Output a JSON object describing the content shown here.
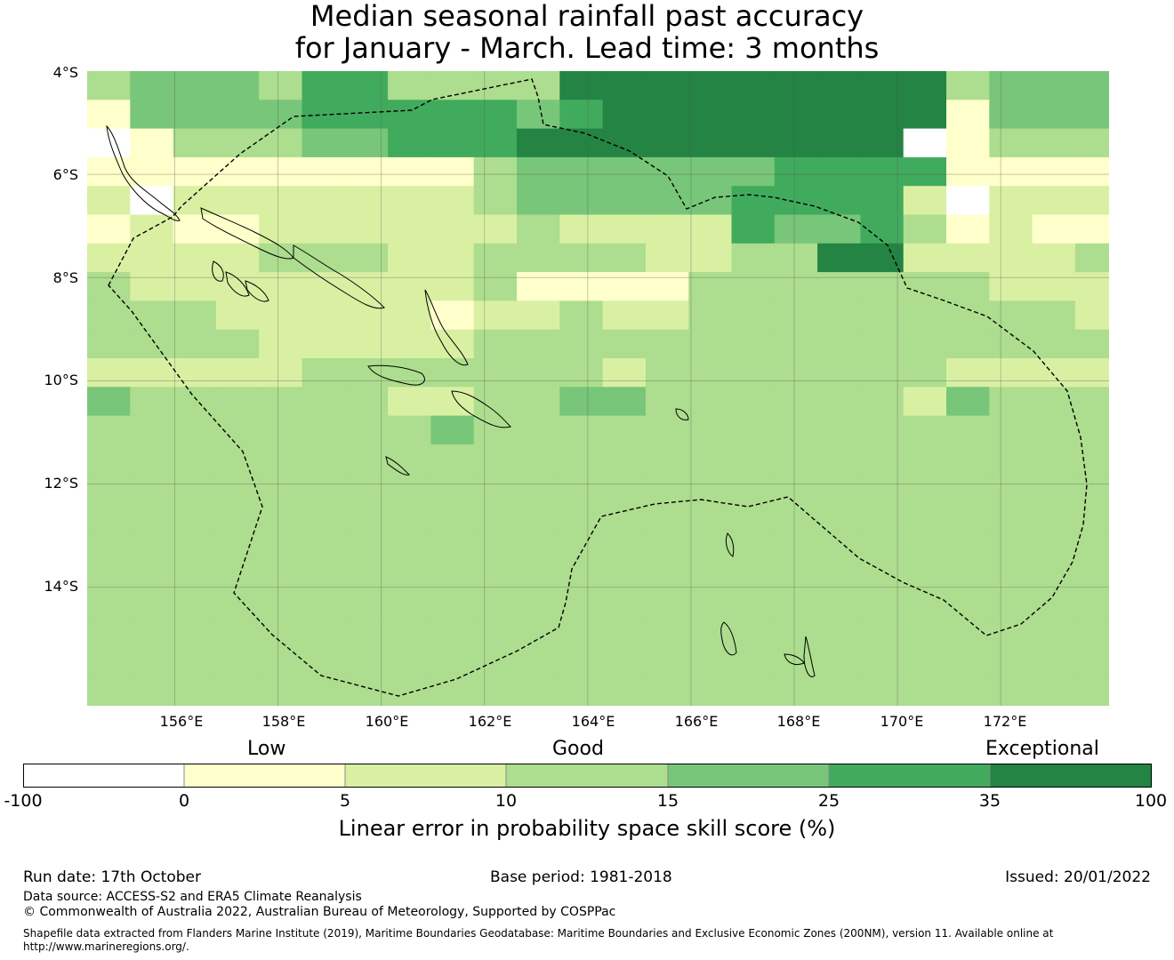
{
  "title": {
    "line1": "Median seasonal rainfall past accuracy",
    "line2": "for January - March. Lead time: 3 months"
  },
  "map": {
    "lat_labels": [
      "4°S",
      "6°S",
      "8°S",
      "10°S",
      "12°S",
      "14°S"
    ],
    "lon_labels": [
      "156°E",
      "158°E",
      "160°E",
      "162°E",
      "164°E",
      "166°E",
      "168°E",
      "170°E",
      "172°E"
    ],
    "lon_range": [
      154.3,
      174.1
    ],
    "lat_range": [
      -16.3,
      -4.0
    ],
    "cell_deg": 0.83,
    "skill_grid_levels": [
      "23332442222666666666",
      "03333444443466666666",
      "-022233444555655666",
      "00000000023333334444",
      "1-11111112333334444",
      "01001111112111143342",
      "1111222112222112255",
      "21111111120000222222",
      "22211111011211222222",
      "22221111122222222222",
      "11111222222212222222",
      "32222221122332222221",
      "22222222322222222222",
      "22222222222222222222",
      "22222222222222222222",
      "22222222222222222222",
      "22222222222222222222",
      "22222222222222222222",
      "22222222222222222222",
      "22222222222222222222"
    ],
    "colors": {
      "-100_0": "#ffffff",
      "0_5": "#ffffcc",
      "5_10": "#d9f0a3",
      "10_15": "#addd8e",
      "15_25": "#78c679",
      "25_35": "#41ab5d",
      "35_100": "#238443"
    }
  },
  "legend": {
    "categories": [
      "Low",
      "Good",
      "Exceptional"
    ],
    "ticks": [
      "-100",
      "0",
      "5",
      "10",
      "15",
      "25",
      "35",
      "100"
    ],
    "colors": [
      "#ffffff",
      "#ffffcc",
      "#d9f0a3",
      "#addd8e",
      "#78c679",
      "#41ab5d",
      "#238443"
    ],
    "label": "Linear error in probability space skill score (%)"
  },
  "footer": {
    "run_date": "Run date: 17th October",
    "base_period": "Base period: 1981-2018",
    "issued": "Issued: 20/01/2022",
    "data_source": "Data source: ACCESS-S2 and ERA5 Climate Reanalysis",
    "copyright": "© Commonwealth of Australia 2022, Australian Bureau of Meteorology, Supported by COSPPac",
    "shapefile_line1": "Shapefile data extracted from Flanders Marine Institute (2019), Maritime Boundaries Geodatabase: Maritime Boundaries and Exclusive Economic Zones (200NM), version 11. Available online at",
    "shapefile_line2": "http://www.marineregions.org/."
  }
}
